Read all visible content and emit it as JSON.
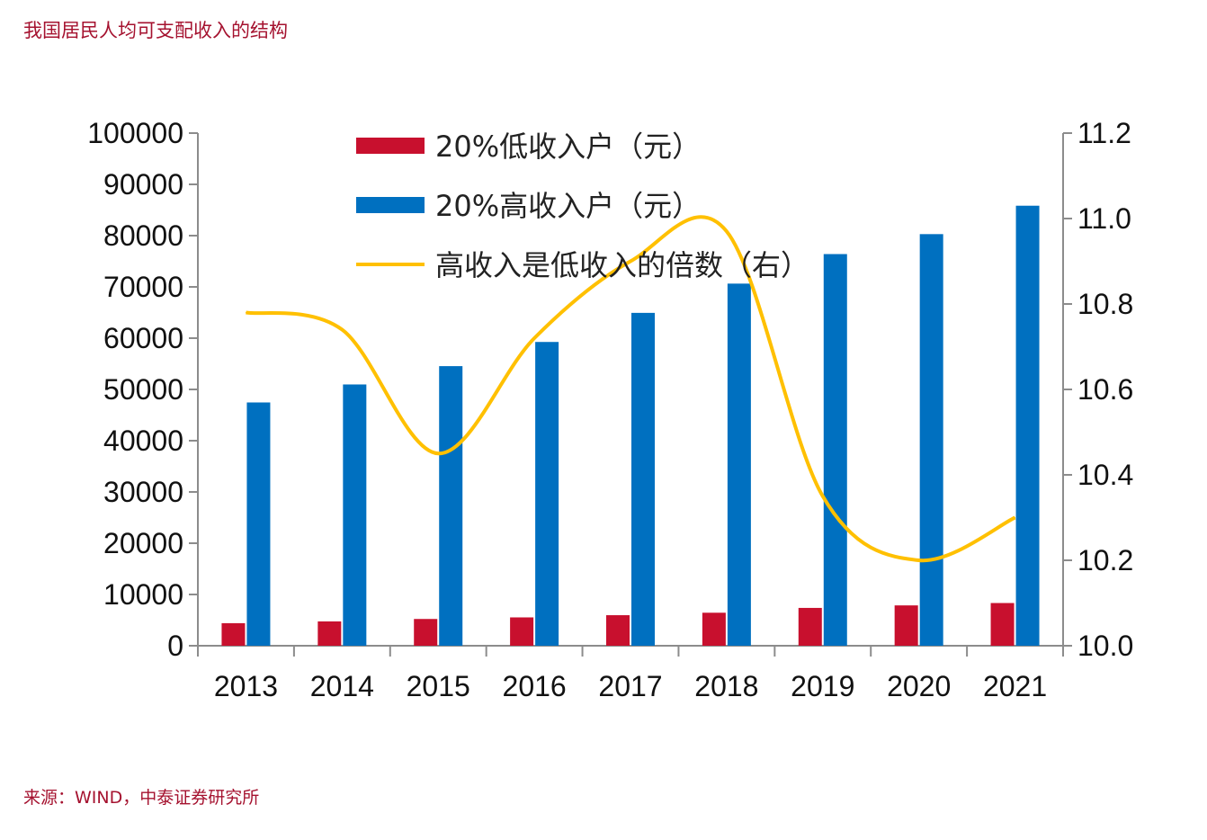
{
  "header": {
    "title": "我国居民人均可支配收入的结构"
  },
  "footer": {
    "source": "来源：WIND，中泰证券研究所"
  },
  "colors": {
    "low": "#c8102e",
    "high": "#0070c0",
    "ratio": "#ffc000",
    "accent": "#a5122f"
  },
  "chart_data": {
    "type": "bar",
    "title": "我国居民人均可支配收入的结构",
    "categories": [
      "2013",
      "2014",
      "2015",
      "2016",
      "2017",
      "2018",
      "2019",
      "2020",
      "2021"
    ],
    "series": [
      {
        "name": "20%低收入户（元）",
        "type": "bar",
        "axis": "left",
        "values": [
          4402,
          4747,
          5221,
          5529,
          5958,
          6440,
          7380,
          7869,
          8333
        ]
      },
      {
        "name": "20%高收入户（元）",
        "type": "bar",
        "axis": "left",
        "values": [
          47457,
          50968,
          54544,
          59259,
          64934,
          70640,
          76401,
          80294,
          85836
        ]
      },
      {
        "name": "高收入是低收入的倍数（右）",
        "type": "line",
        "axis": "right",
        "values": [
          10.78,
          10.74,
          10.45,
          10.72,
          10.9,
          10.97,
          10.35,
          10.2,
          10.3
        ]
      }
    ],
    "y_left": {
      "min": 0,
      "max": 100000,
      "ticks": [
        "0",
        "10000",
        "20000",
        "30000",
        "40000",
        "50000",
        "60000",
        "70000",
        "80000",
        "90000",
        "100000"
      ]
    },
    "y_right": {
      "min": 10.0,
      "max": 11.2,
      "ticks": [
        "10.0",
        "10.2",
        "10.4",
        "10.6",
        "10.8",
        "11.0",
        "11.2"
      ]
    },
    "legend": {
      "position": "top-center"
    },
    "grid": false
  }
}
